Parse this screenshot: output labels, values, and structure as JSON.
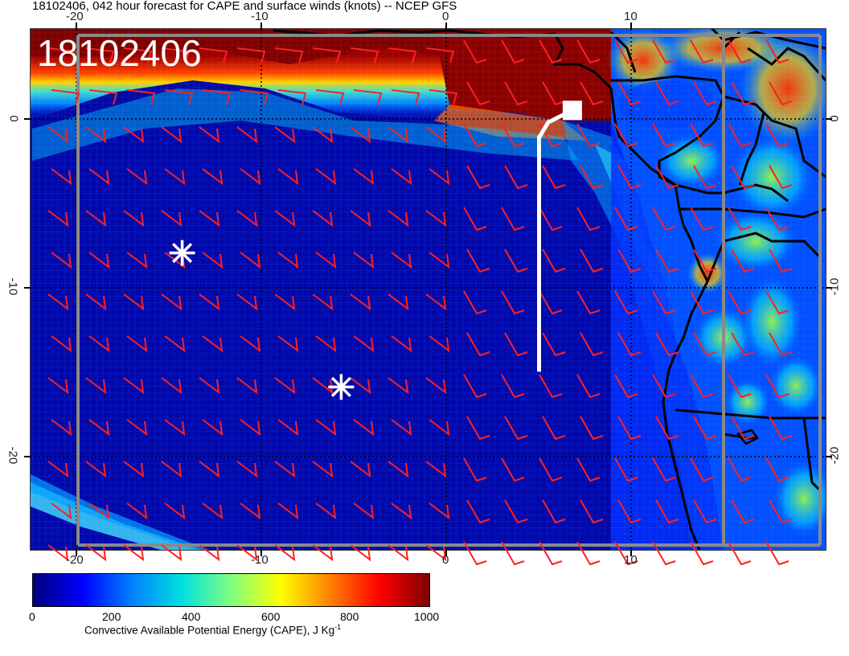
{
  "title": "18102406, 042 hour forecast for CAPE and surface winds (knots) -- NCEP GFS",
  "stamp": "18102406",
  "map": {
    "lon_range": [
      -22.5,
      20.5
    ],
    "lat_range": [
      -25.5,
      5.2
    ],
    "x_ticks": [
      "-20",
      "-10",
      "0",
      "10"
    ],
    "y_ticks": [
      "0",
      "-10",
      "-20"
    ],
    "markers": [
      {
        "type": "asterisk",
        "lon": -14.3,
        "lat": -8.0
      },
      {
        "type": "asterisk",
        "lon": -5.7,
        "lat": -15.9
      }
    ],
    "flight_track": {
      "lon": [
        5.0,
        5.0,
        5.5,
        6.8
      ],
      "lat": [
        -15.0,
        -1.2,
        -0.3,
        0.4
      ]
    },
    "wind_barb_color": "#ff2020",
    "marker_color": "#ffffff"
  },
  "colorbar": {
    "ticks": [
      "0",
      "200",
      "400",
      "600",
      "800",
      "1000"
    ],
    "label": "Convective Available Potential Energy (CAPE), J Kg",
    "label_sup": "-1",
    "colors": [
      "#00007f",
      "#0000ff",
      "#0080ff",
      "#00e0e0",
      "#80ff80",
      "#ffff00",
      "#ff8000",
      "#ff0000",
      "#7f0000"
    ]
  }
}
